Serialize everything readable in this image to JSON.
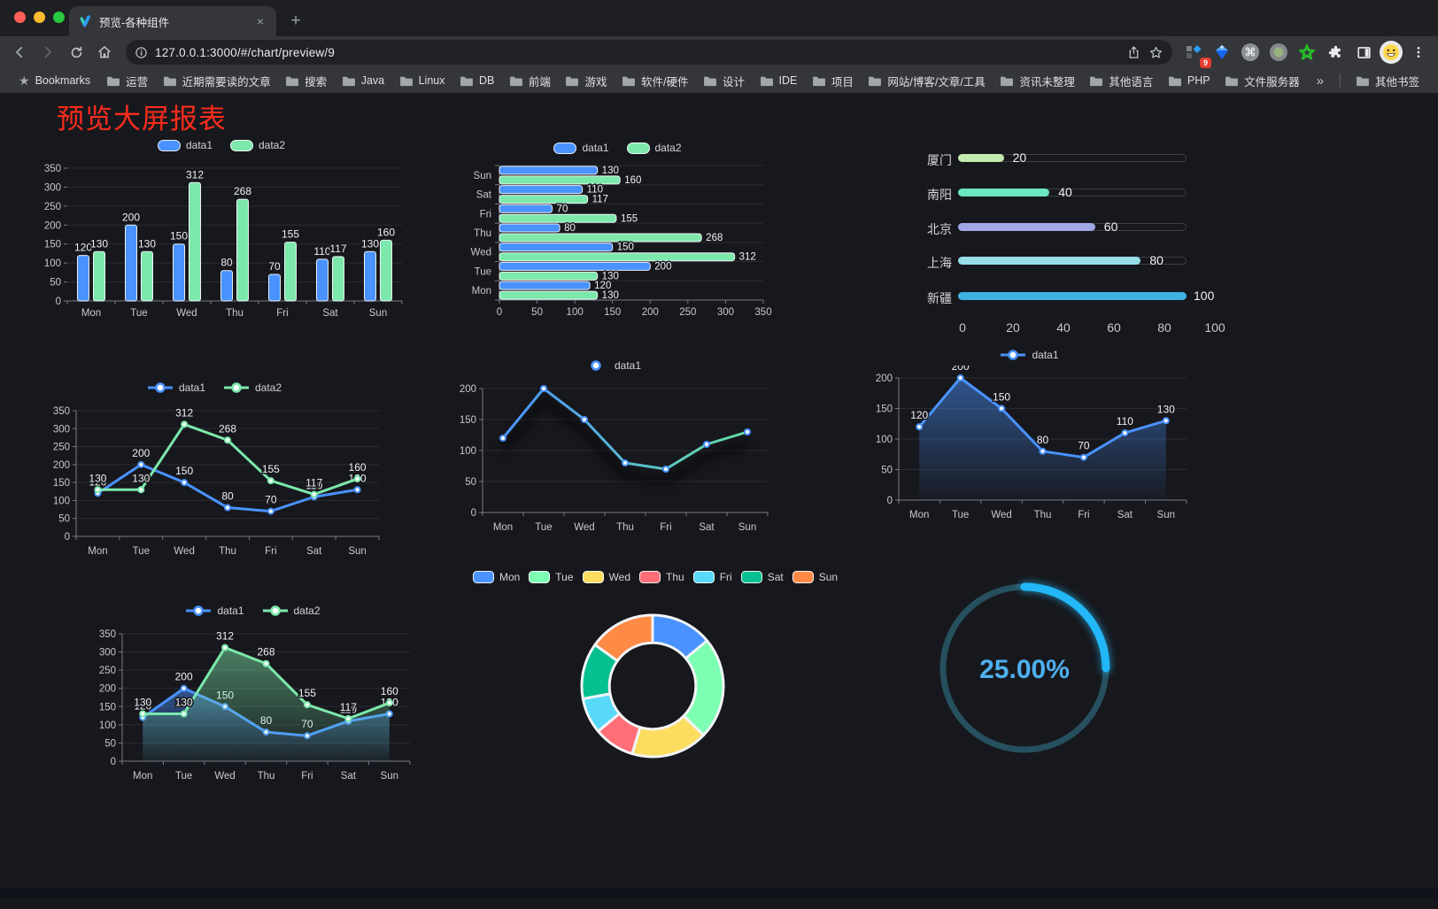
{
  "browser": {
    "tab_title": "预览-各种组件",
    "close_label": "×",
    "new_tab_label": "+",
    "url": "127.0.0.1:3000/#/chart/preview/9",
    "bookmarks_label": "Bookmarks",
    "bookmark_folders": [
      "运营",
      "近期需要读的文章",
      "搜索",
      "Java",
      "Linux",
      "DB",
      "前端",
      "游戏",
      "软件/硬件",
      "设计",
      "IDE",
      "项目",
      "网站/博客/文章/工具",
      "资讯未整理",
      "其他语言",
      "PHP",
      "文件服务器"
    ],
    "overflow_chevron": "»",
    "other_bookmarks_label": "其他书签",
    "extension_badge_count": "9"
  },
  "page": {
    "title": "预览大屏报表",
    "title_color": "#fa2c1c"
  },
  "chart_data": [
    {
      "id": "grouped-bar",
      "type": "bar",
      "categories": [
        "Mon",
        "Tue",
        "Wed",
        "Thu",
        "Fri",
        "Sat",
        "Sun"
      ],
      "series": [
        {
          "name": "data1",
          "color": "#4992ff",
          "values": [
            120,
            200,
            150,
            80,
            70,
            110,
            130
          ]
        },
        {
          "name": "data2",
          "color": "#7ce8ab",
          "values": [
            130,
            130,
            312,
            268,
            155,
            117,
            160
          ]
        }
      ],
      "ylim": [
        0,
        350
      ],
      "ystep": 50,
      "grid": true,
      "legend_position": "top"
    },
    {
      "id": "horizontal-bar",
      "type": "bar-horizontal",
      "categories": [
        "Mon",
        "Tue",
        "Wed",
        "Thu",
        "Fri",
        "Sat",
        "Sun"
      ],
      "display_order_top_to_bottom": [
        "Sun",
        "Sat",
        "Fri",
        "Thu",
        "Wed",
        "Tue",
        "Mon"
      ],
      "series": [
        {
          "name": "data1",
          "color": "#4992ff",
          "values": [
            120,
            200,
            150,
            80,
            70,
            110,
            130
          ]
        },
        {
          "name": "data2",
          "color": "#7ce8ab",
          "values": [
            130,
            130,
            312,
            268,
            155,
            117,
            160
          ]
        }
      ],
      "xlim": [
        0,
        350
      ],
      "xstep": 50,
      "legend_position": "top"
    },
    {
      "id": "city-progress",
      "type": "progress",
      "items": [
        {
          "label": "厦门",
          "value": 20,
          "color": "#c4ebad"
        },
        {
          "label": "南阳",
          "value": 40,
          "color": "#6be6c1"
        },
        {
          "label": "北京",
          "value": 60,
          "color": "#a0a7e6"
        },
        {
          "label": "上海",
          "value": 80,
          "color": "#96dee8"
        },
        {
          "label": "新疆",
          "value": 100,
          "color": "#3fb1e3"
        }
      ],
      "max": 100,
      "axis_ticks": [
        0,
        20,
        40,
        60,
        80,
        100
      ]
    },
    {
      "id": "dual-line",
      "type": "line",
      "categories": [
        "Mon",
        "Tue",
        "Wed",
        "Thu",
        "Fri",
        "Sat",
        "Sun"
      ],
      "series": [
        {
          "name": "data1",
          "color": "#4992ff",
          "values": [
            120,
            200,
            150,
            80,
            70,
            110,
            130
          ]
        },
        {
          "name": "data2",
          "color": "#7ce8ab",
          "values": [
            130,
            130,
            312,
            268,
            155,
            117,
            160
          ]
        }
      ],
      "ylim": [
        0,
        350
      ],
      "ystep": 50,
      "show_labels": true,
      "legend_position": "top"
    },
    {
      "id": "gradient-line",
      "type": "line",
      "categories": [
        "Mon",
        "Tue",
        "Wed",
        "Thu",
        "Fri",
        "Sat",
        "Sun"
      ],
      "series": [
        {
          "name": "data1",
          "color": "#4992ff",
          "gradient": [
            "#4992ff",
            "#66e0a3"
          ],
          "values": [
            120,
            200,
            150,
            80,
            70,
            110,
            130
          ],
          "shadow": true
        }
      ],
      "ylim": [
        0,
        200
      ],
      "ystep": 50,
      "show_labels": false,
      "legend_position": "top"
    },
    {
      "id": "blue-area-line",
      "type": "line",
      "categories": [
        "Mon",
        "Tue",
        "Wed",
        "Thu",
        "Fri",
        "Sat",
        "Sun"
      ],
      "series": [
        {
          "name": "data1",
          "color": "#4992ff",
          "area": true,
          "values": [
            120,
            200,
            150,
            80,
            70,
            110,
            130
          ]
        }
      ],
      "ylim": [
        0,
        200
      ],
      "ystep": 50,
      "show_labels": true,
      "legend_position": "top"
    },
    {
      "id": "dual-area-line",
      "type": "line",
      "categories": [
        "Mon",
        "Tue",
        "Wed",
        "Thu",
        "Fri",
        "Sat",
        "Sun"
      ],
      "series": [
        {
          "name": "data1",
          "color": "#4992ff",
          "area": true,
          "values": [
            120,
            200,
            150,
            80,
            70,
            110,
            130
          ]
        },
        {
          "name": "data2",
          "color": "#7ce8ab",
          "area": true,
          "values": [
            130,
            130,
            312,
            268,
            155,
            117,
            160
          ]
        }
      ],
      "ylim": [
        0,
        350
      ],
      "ystep": 50,
      "show_labels": true,
      "legend_position": "top"
    },
    {
      "id": "week-donut",
      "type": "pie",
      "items": [
        {
          "name": "Mon",
          "value": 120,
          "color": "#4992ff"
        },
        {
          "name": "Tue",
          "value": 200,
          "color": "#7cffb2"
        },
        {
          "name": "Wed",
          "value": 150,
          "color": "#fddd60"
        },
        {
          "name": "Thu",
          "value": 80,
          "color": "#ff6e76"
        },
        {
          "name": "Fri",
          "value": 70,
          "color": "#58d9f9"
        },
        {
          "name": "Sat",
          "value": 110,
          "color": "#05c091"
        },
        {
          "name": "Sun",
          "value": 130,
          "color": "#ff8a45"
        }
      ],
      "inner_radius_ratio": 0.61,
      "legend_position": "top"
    },
    {
      "id": "percent-gauge",
      "type": "gauge",
      "value": 25,
      "max": 100,
      "label": "25.00%",
      "color": "#23b7f7",
      "track_color": "#26505e",
      "text_color": "#4fb0ee"
    }
  ]
}
